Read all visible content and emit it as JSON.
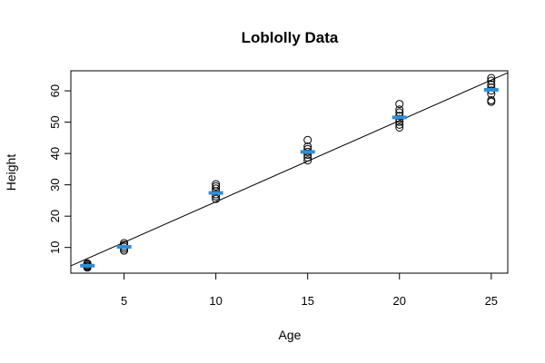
{
  "chart_data": {
    "type": "scatter",
    "title": "Loblolly Data",
    "xlabel": "Age",
    "ylabel": "Height",
    "xlim": [
      2.1,
      25.9
    ],
    "ylim": [
      1.8,
      66.4
    ],
    "x_ticks": [
      5,
      10,
      15,
      20,
      25
    ],
    "y_ticks": [
      10,
      20,
      30,
      40,
      50,
      60
    ],
    "grid": false,
    "legend": "none",
    "points": [
      {
        "x": 3,
        "y": 3.6
      },
      {
        "x": 3,
        "y": 3.9
      },
      {
        "x": 3,
        "y": 4.2
      },
      {
        "x": 3,
        "y": 4.6
      },
      {
        "x": 3,
        "y": 4.9
      },
      {
        "x": 5,
        "y": 9.0
      },
      {
        "x": 5,
        "y": 9.6
      },
      {
        "x": 5,
        "y": 10.2
      },
      {
        "x": 5,
        "y": 10.8
      },
      {
        "x": 5,
        "y": 11.4
      },
      {
        "x": 10,
        "y": 25.5
      },
      {
        "x": 10,
        "y": 26.3
      },
      {
        "x": 10,
        "y": 27.0
      },
      {
        "x": 10,
        "y": 27.9
      },
      {
        "x": 10,
        "y": 28.8
      },
      {
        "x": 10,
        "y": 29.5
      },
      {
        "x": 10,
        "y": 30.2
      },
      {
        "x": 15,
        "y": 37.8
      },
      {
        "x": 15,
        "y": 38.7
      },
      {
        "x": 15,
        "y": 39.6
      },
      {
        "x": 15,
        "y": 40.5
      },
      {
        "x": 15,
        "y": 41.4
      },
      {
        "x": 15,
        "y": 42.2
      },
      {
        "x": 15,
        "y": 44.3
      },
      {
        "x": 20,
        "y": 48.3
      },
      {
        "x": 20,
        "y": 49.2
      },
      {
        "x": 20,
        "y": 50.1
      },
      {
        "x": 20,
        "y": 51.0
      },
      {
        "x": 20,
        "y": 52.0
      },
      {
        "x": 20,
        "y": 53.1
      },
      {
        "x": 20,
        "y": 54.0
      },
      {
        "x": 20,
        "y": 55.8
      },
      {
        "x": 25,
        "y": 56.5
      },
      {
        "x": 25,
        "y": 57.0
      },
      {
        "x": 25,
        "y": 59.0
      },
      {
        "x": 25,
        "y": 60.1
      },
      {
        "x": 25,
        "y": 61.0
      },
      {
        "x": 25,
        "y": 62.0
      },
      {
        "x": 25,
        "y": 63.2
      },
      {
        "x": 25,
        "y": 64.1
      }
    ],
    "group_means": [
      {
        "x": 3,
        "y": 4.2
      },
      {
        "x": 5,
        "y": 10.2
      },
      {
        "x": 10,
        "y": 27.4
      },
      {
        "x": 15,
        "y": 40.5
      },
      {
        "x": 20,
        "y": 51.5
      },
      {
        "x": 25,
        "y": 60.3
      }
    ],
    "fit_line": {
      "intercept": -1.31,
      "slope": 2.59
    },
    "colors": {
      "points": "#000000",
      "means": "#2f8fd8",
      "fit_line": "#000000"
    }
  }
}
